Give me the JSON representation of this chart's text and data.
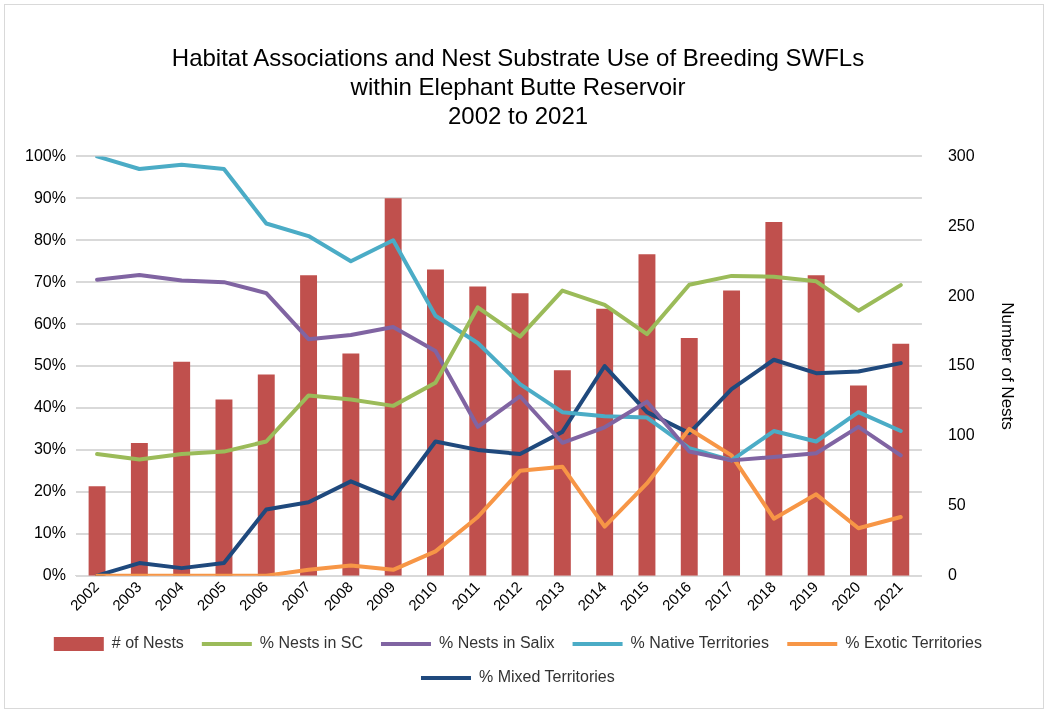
{
  "chart_data": {
    "type": "bar",
    "title": "Habitat Associations and Nest Substrate Use of Breeding SWFLs\nwithin Elephant Butte Reservoir\n2002 to 2021",
    "y2label": "Number of Nests",
    "categories": [
      "2002",
      "2003",
      "2004",
      "2005",
      "2006",
      "2007",
      "2008",
      "2009",
      "2010",
      "2011",
      "2012",
      "2013",
      "2014",
      "2015",
      "2016",
      "2017",
      "2018",
      "2019",
      "2020",
      "2021"
    ],
    "ylim": [
      0,
      100
    ],
    "yticks": [
      {
        "value": 0,
        "label": "0%"
      },
      {
        "value": 10,
        "label": "10%"
      },
      {
        "value": 20,
        "label": "20%"
      },
      {
        "value": 30,
        "label": "30%"
      },
      {
        "value": 40,
        "label": "40%"
      },
      {
        "value": 50,
        "label": "50%"
      },
      {
        "value": 60,
        "label": "60%"
      },
      {
        "value": 70,
        "label": "70%"
      },
      {
        "value": 80,
        "label": "80%"
      },
      {
        "value": 90,
        "label": "90%"
      },
      {
        "value": 100,
        "label": "100%"
      }
    ],
    "y2lim": [
      0,
      300
    ],
    "y2ticks": [
      0,
      50,
      100,
      150,
      200,
      250,
      300
    ],
    "grid": "y",
    "legend": "bottom",
    "marker": "none",
    "line_style": "solid",
    "series": [
      {
        "name": "# of Nests",
        "axis": "y2",
        "color": "#c0504d",
        "values": [
          64,
          95,
          153,
          126,
          144,
          215,
          159,
          270,
          219,
          207,
          202,
          147,
          191,
          230,
          170,
          204,
          253,
          215,
          136,
          166
        ]
      },
      {
        "name": "% Nests in SC",
        "type": "line",
        "color": "#9bbb59",
        "values": [
          29,
          27.7,
          29,
          29.6,
          32,
          43,
          42,
          40.5,
          46,
          64,
          57,
          68,
          64.6,
          57.6,
          69.4,
          71.5,
          71.3,
          70.2,
          63.2,
          69.3
        ]
      },
      {
        "name": "% Nests in Salix",
        "type": "line",
        "color": "#8064a2",
        "values": [
          70.6,
          71.7,
          70.4,
          70,
          67.4,
          56.4,
          57.4,
          59.3,
          53.6,
          35.5,
          42.8,
          31.7,
          35.4,
          41.5,
          29.6,
          27.5,
          28.3,
          29.2,
          35.5,
          28.7
        ]
      },
      {
        "name": "% Native Territories",
        "type": "line",
        "color": "#4bacc6",
        "values": [
          100,
          97,
          98,
          97,
          84,
          81,
          75,
          80,
          62,
          55.5,
          45.7,
          39,
          38,
          37.7,
          30.4,
          27.5,
          34.5,
          32,
          39,
          34.5
        ]
      },
      {
        "name": "% Exotic Territories",
        "type": "line",
        "color": "#f79646",
        "values": [
          0,
          0,
          0,
          0,
          0,
          1.4,
          2.4,
          1.4,
          5.8,
          14,
          25,
          26,
          11.7,
          22,
          35,
          28.7,
          13.6,
          19.4,
          11.3,
          14
        ]
      },
      {
        "name": "% Mixed Territories",
        "type": "line",
        "color": "#1f497d",
        "values": [
          0,
          3,
          1.8,
          3,
          15.8,
          17.5,
          22.5,
          18.4,
          32,
          30,
          29,
          34.3,
          50,
          39,
          34,
          44.5,
          51.5,
          48.3,
          48.7,
          50.7
        ]
      }
    ]
  }
}
